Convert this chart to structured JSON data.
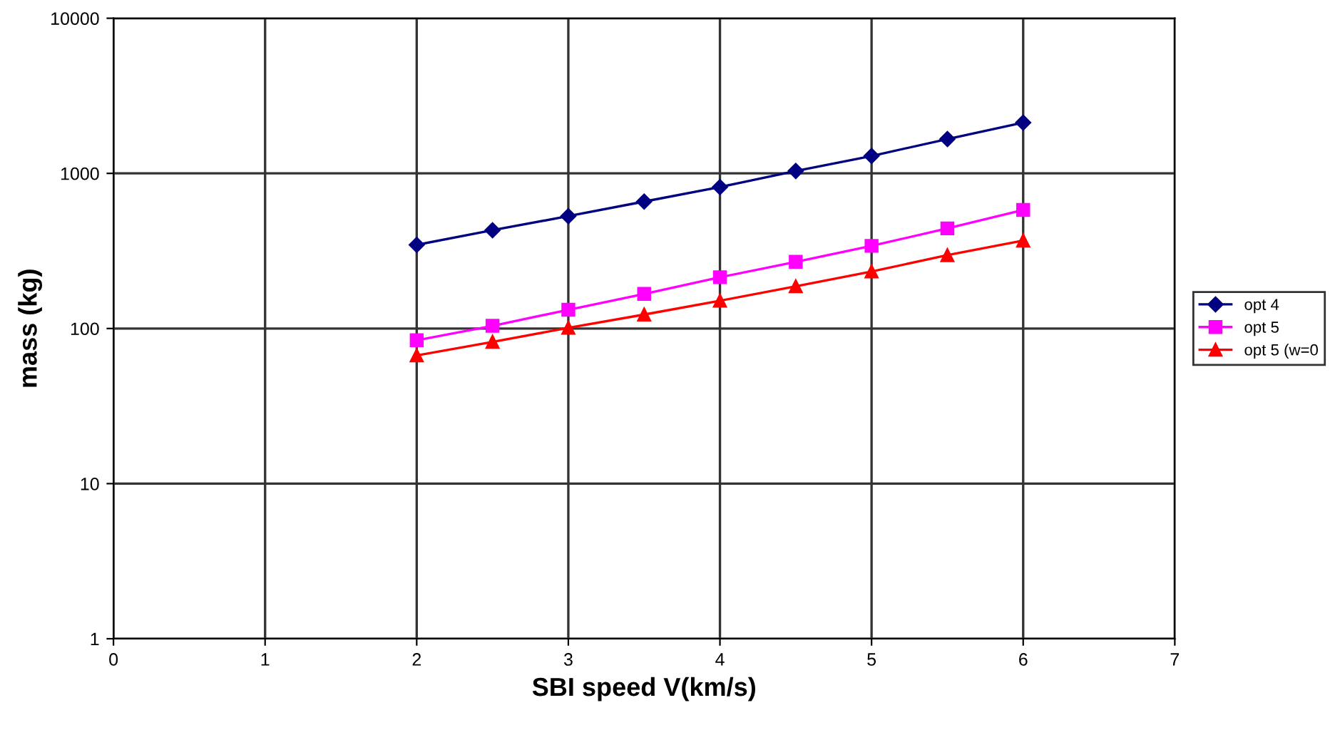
{
  "chart_data": {
    "type": "line",
    "xlabel": "SBI speed V(km/s)",
    "ylabel": "mass (kg)",
    "x": [
      2,
      2.5,
      3,
      3.5,
      4,
      4.5,
      5,
      5.5,
      6
    ],
    "series": [
      {
        "name": "opt 4",
        "color": "#000080",
        "marker": "diamond",
        "values": [
          346,
          430,
          530,
          658,
          816,
          1036,
          1295,
          1664,
          2125
        ]
      },
      {
        "name": "opt 5",
        "color": "#ff00ff",
        "marker": "square",
        "values": [
          84,
          104,
          132,
          167,
          214,
          269,
          341,
          442,
          581
        ]
      },
      {
        "name": "opt 5 (w=0",
        "color": "#ff0000",
        "marker": "triangle",
        "values": [
          67,
          82,
          101,
          123,
          151,
          187,
          233,
          297,
          369
        ]
      }
    ],
    "log": "y",
    "xlim": [
      0,
      7
    ],
    "xticks": [
      0,
      1,
      2,
      3,
      4,
      5,
      6,
      7
    ],
    "ylim": [
      1,
      10000
    ],
    "yticks": [
      1,
      10,
      100,
      1000,
      10000
    ],
    "grid": true,
    "legend": "right",
    "line_style": "solid"
  }
}
